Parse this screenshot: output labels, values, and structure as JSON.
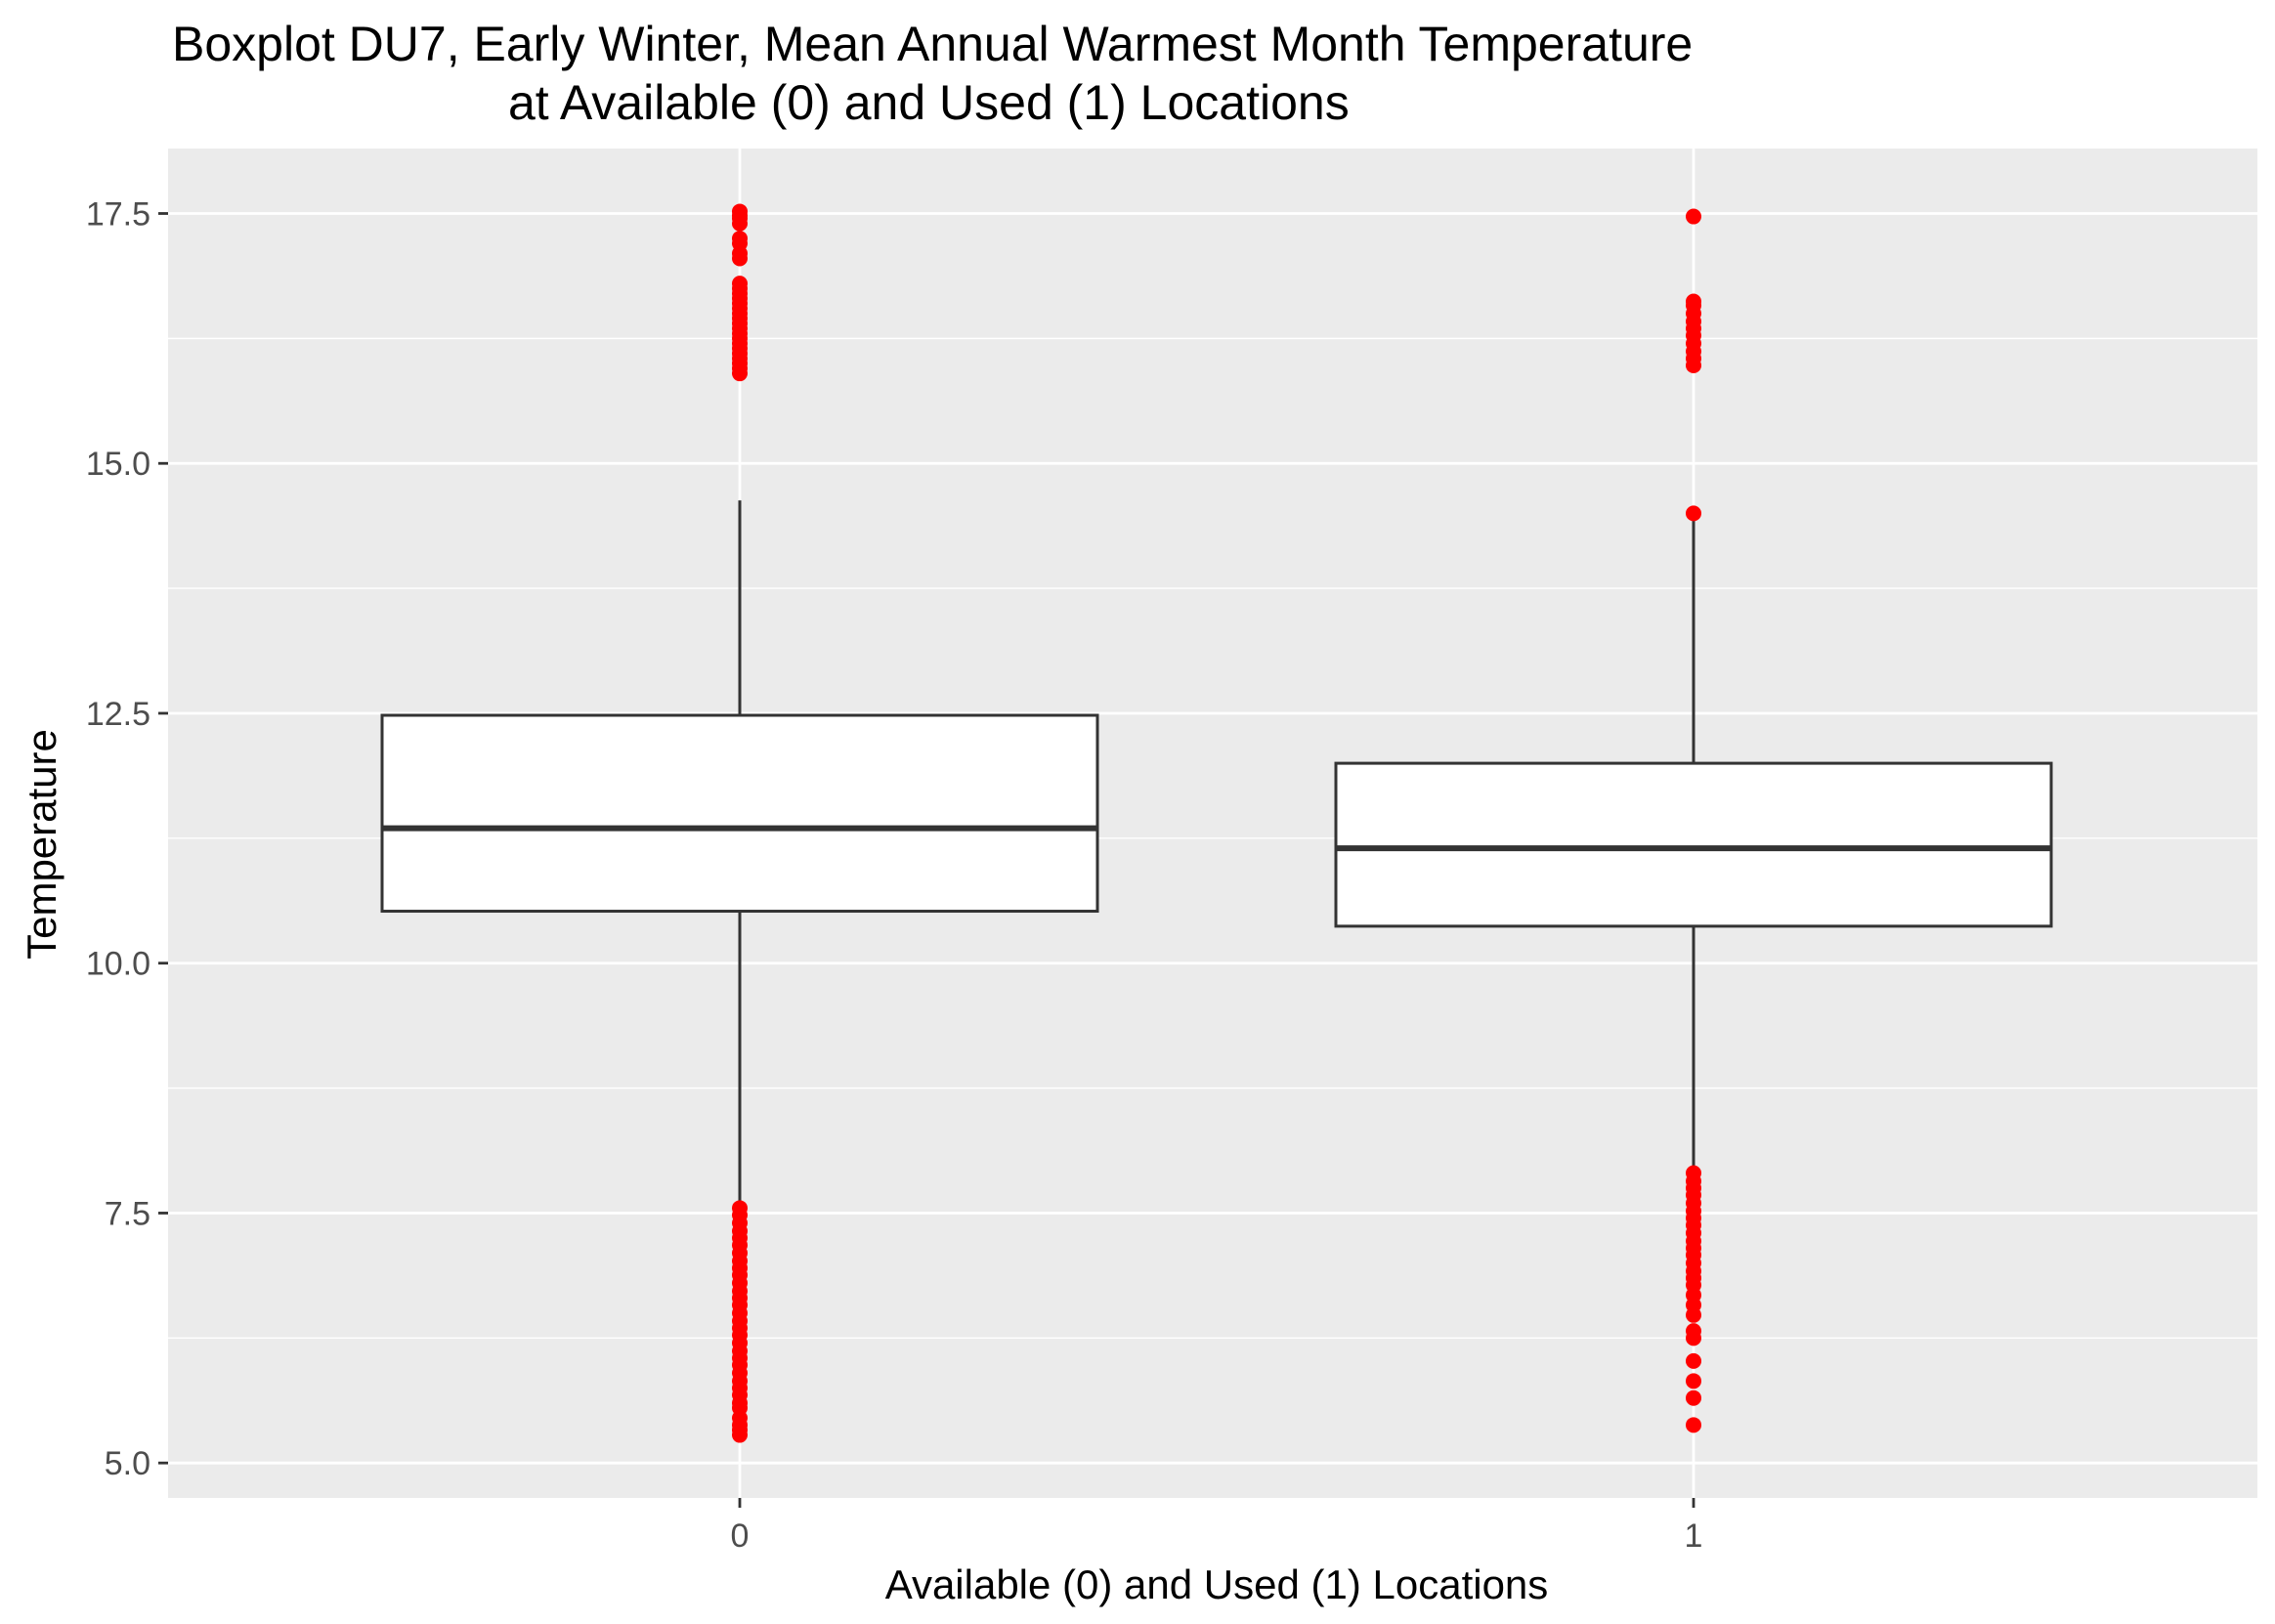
{
  "chart_data": {
    "type": "boxplot",
    "title": "Boxplot DU7, Early Winter, Mean Annual Warmest Month Temperature",
    "subtitle": "at Available (0) and Used (1) Locations",
    "xlabel": "Available (0) and Used (1) Locations",
    "ylabel": "Temperature",
    "categories": [
      "0",
      "1"
    ],
    "ylim": [
      4.65,
      18.15
    ],
    "yticks": [
      5.0,
      7.5,
      10.0,
      12.5,
      15.0,
      17.5
    ],
    "ytick_labels": [
      "5.0",
      "7.5",
      "10.0",
      "12.5",
      "15.0",
      "17.5"
    ],
    "grid": true,
    "colors": {
      "panel": "#ebebeb",
      "grid": "#ffffff",
      "box_fill": "#ffffff",
      "box_line": "#333333",
      "outlier": "#ff0000",
      "tick": "#333333"
    },
    "boxes": [
      {
        "category": "0",
        "q1": 10.52,
        "median": 11.35,
        "q3": 12.48,
        "whisker_low": 7.6,
        "whisker_high": 14.63,
        "outliers": [
          5.28,
          5.33,
          5.38,
          5.45,
          5.55,
          5.6,
          5.68,
          5.75,
          5.82,
          5.9,
          5.98,
          6.05,
          6.12,
          6.2,
          6.28,
          6.35,
          6.42,
          6.5,
          6.58,
          6.65,
          6.72,
          6.8,
          6.88,
          6.95,
          7.02,
          7.1,
          7.18,
          7.25,
          7.32,
          7.4,
          7.48,
          7.55,
          15.9,
          15.95,
          16.0,
          16.05,
          16.1,
          16.15,
          16.2,
          16.25,
          16.3,
          16.35,
          16.4,
          16.45,
          16.5,
          16.55,
          16.6,
          16.65,
          16.7,
          16.75,
          16.8,
          17.05,
          17.1,
          17.2,
          17.25,
          17.4,
          17.45,
          17.48,
          17.52
        ]
      },
      {
        "category": "1",
        "q1": 10.37,
        "median": 11.15,
        "q3": 12.0,
        "whisker_low": 7.93,
        "whisker_high": 14.49,
        "outliers": [
          5.38,
          5.65,
          5.82,
          6.02,
          6.25,
          6.32,
          6.48,
          6.58,
          6.68,
          6.78,
          6.85,
          6.92,
          7.0,
          7.08,
          7.15,
          7.22,
          7.3,
          7.38,
          7.45,
          7.52,
          7.6,
          7.68,
          7.75,
          7.82,
          7.9,
          14.5,
          15.98,
          16.05,
          16.12,
          16.2,
          16.28,
          16.35,
          16.42,
          16.5,
          16.58,
          16.62,
          17.47
        ]
      }
    ]
  }
}
